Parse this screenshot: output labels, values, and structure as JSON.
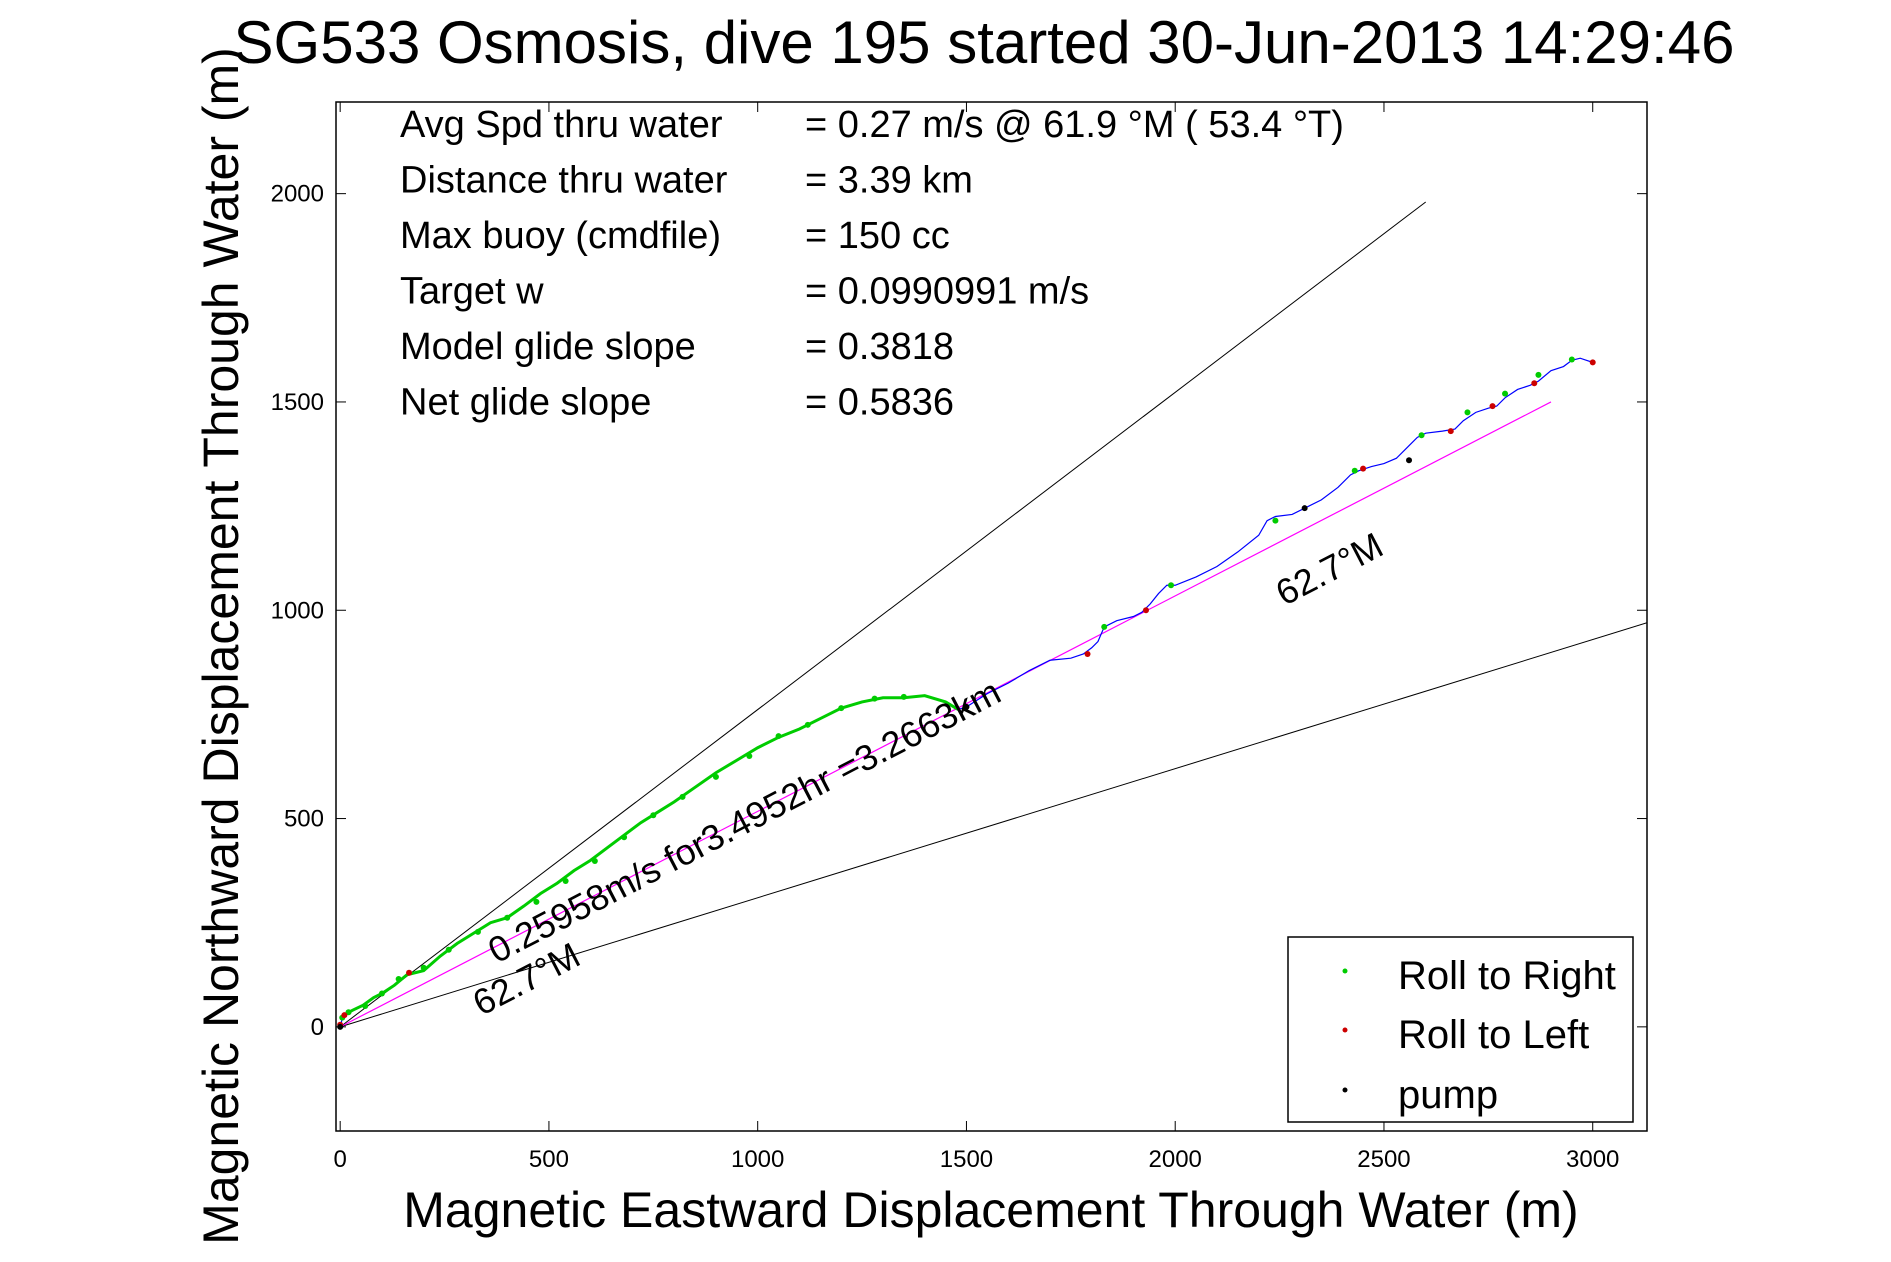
{
  "chart_data": {
    "type": "line",
    "title": "SG533 Osmosis, dive 195 started 30-Jun-2013 14:29:46",
    "xlabel": "Magnetic Eastward Displacement Through Water (m)",
    "ylabel": "Magnetic Northward Displacement Through Water (m)",
    "xlim": [
      -10,
      3130
    ],
    "ylim": [
      -250,
      2220
    ],
    "xticks": [
      0,
      500,
      1000,
      1500,
      2000,
      2500,
      3000
    ],
    "yticks": [
      0,
      500,
      1000,
      1500,
      2000
    ],
    "grid": false,
    "legend_position": "bottom-right",
    "stats": [
      {
        "label": "Avg Spd thru water",
        "value": "=  0.27 m/s @  61.9 °M ( 53.4 °T)"
      },
      {
        "label": "Distance thru water",
        "value": "=  3.39 km"
      },
      {
        "label": "Max buoy (cmdfile)",
        "value": "= 150 cc"
      },
      {
        "label": "Target w",
        "value": "= 0.0990991 m/s"
      },
      {
        "label": "Model glide slope",
        "value": "= 0.3818"
      },
      {
        "label": "Net glide slope",
        "value": "= 0.5836"
      }
    ],
    "annotations": {
      "speed_label": "0.25958m/s for3.4952hr =3.2663km",
      "heading_label_main": "62.7°M",
      "heading_label_lower": "62.7°M"
    },
    "lines": {
      "upper_bound": {
        "x": [
          0,
          2600
        ],
        "y": [
          0,
          1980
        ],
        "color": "#000000"
      },
      "lower_bound": {
        "x": [
          0,
          3130
        ],
        "y": [
          0,
          970
        ],
        "color": "#000000"
      },
      "heading": {
        "x": [
          0,
          2900
        ],
        "y": [
          0,
          1500
        ],
        "color": "#ff00ff"
      }
    },
    "track": {
      "color": "#0000ff",
      "x": [
        0,
        5,
        15,
        30,
        55,
        80,
        100,
        130,
        160,
        200,
        240,
        280,
        320,
        360,
        400,
        440,
        480,
        520,
        560,
        600,
        640,
        680,
        720,
        760,
        800,
        850,
        900,
        950,
        1000,
        1050,
        1100,
        1150,
        1200,
        1250,
        1300,
        1350,
        1400,
        1450,
        1480,
        1500,
        1550,
        1600,
        1650,
        1700,
        1750,
        1780,
        1800,
        1815,
        1830,
        1860,
        1900,
        1920,
        1940,
        1960,
        1980,
        2000,
        2050,
        2100,
        2150,
        2200,
        2220,
        2240,
        2280,
        2310,
        2350,
        2390,
        2420,
        2440,
        2470,
        2500,
        2530,
        2560,
        2580,
        2600,
        2640,
        2670,
        2690,
        2720,
        2750,
        2770,
        2790,
        2820,
        2850,
        2870,
        2900,
        2930,
        2950,
        2970,
        2985,
        3000
      ],
      "y": [
        0,
        20,
        32,
        40,
        52,
        70,
        80,
        100,
        125,
        135,
        170,
        200,
        225,
        250,
        262,
        290,
        320,
        345,
        375,
        400,
        430,
        460,
        490,
        515,
        540,
        575,
        610,
        640,
        670,
        695,
        715,
        740,
        765,
        780,
        790,
        790,
        795,
        780,
        762,
        768,
        800,
        825,
        855,
        880,
        885,
        895,
        910,
        925,
        960,
        975,
        985,
        995,
        1015,
        1040,
        1060,
        1060,
        1080,
        1105,
        1140,
        1180,
        1215,
        1225,
        1230,
        1245,
        1265,
        1295,
        1325,
        1335,
        1345,
        1352,
        1365,
        1395,
        1415,
        1425,
        1430,
        1435,
        1455,
        1475,
        1485,
        1490,
        1510,
        1530,
        1540,
        1550,
        1575,
        1585,
        1600,
        1605,
        1600,
        1595
      ]
    },
    "roll_right_points": {
      "color": "#00cc00",
      "x": [
        5,
        20,
        60,
        100,
        140,
        200,
        260,
        330,
        400,
        470,
        540,
        610,
        680,
        750,
        820,
        900,
        980,
        1050,
        1120,
        1200,
        1280,
        1350,
        1830,
        1990,
        2240,
        2430,
        2590,
        2700,
        2790,
        2870,
        2950
      ],
      "y": [
        22,
        35,
        50,
        80,
        115,
        142,
        185,
        228,
        262,
        300,
        350,
        398,
        455,
        508,
        552,
        600,
        650,
        698,
        725,
        765,
        788,
        792,
        960,
        1060,
        1215,
        1335,
        1420,
        1475,
        1520,
        1565,
        1602
      ]
    },
    "roll_left_points": {
      "color": "#cc0000",
      "x": [
        0,
        10,
        165,
        1790,
        1930,
        2450,
        2660,
        2760,
        2860,
        3000
      ],
      "y": [
        5,
        28,
        130,
        895,
        1000,
        1340,
        1430,
        1490,
        1545,
        1595
      ]
    },
    "pump_points": {
      "color": "#000000",
      "x": [
        0,
        1500,
        2310,
        2560
      ],
      "y": [
        0,
        768,
        1245,
        1360
      ]
    },
    "legend": [
      {
        "label": "Roll to Right",
        "color": "#00cc00"
      },
      {
        "label": "Roll to Left",
        "color": "#cc0000"
      },
      {
        "label": "pump",
        "color": "#000000"
      }
    ]
  }
}
